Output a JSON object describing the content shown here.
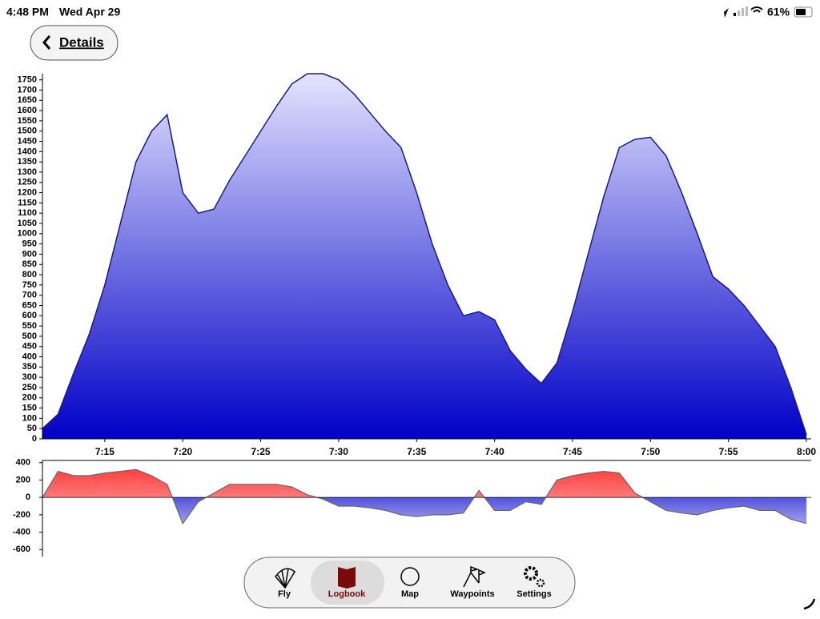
{
  "status_bar": {
    "time": "4:48 PM",
    "date": "Wed Apr 29",
    "battery": "61%"
  },
  "nav": {
    "back": "Details"
  },
  "chart_data": [
    {
      "type": "area",
      "x": [
        "7:11",
        "7:12",
        "7:13",
        "7:14",
        "7:15",
        "7:16",
        "7:17",
        "7:18",
        "7:19",
        "7:20",
        "7:21",
        "7:22",
        "7:23",
        "7:24",
        "7:25",
        "7:26",
        "7:27",
        "7:28",
        "7:29",
        "7:30",
        "7:31",
        "7:32",
        "7:33",
        "7:34",
        "7:35",
        "7:36",
        "7:37",
        "7:38",
        "7:39",
        "7:40",
        "7:41",
        "7:42",
        "7:43",
        "7:44",
        "7:45",
        "7:46",
        "7:47",
        "7:48",
        "7:49",
        "7:50",
        "7:51",
        "7:52",
        "7:53",
        "7:54",
        "7:55",
        "7:56",
        "7:57",
        "7:58",
        "7:59",
        "8:00"
      ],
      "values": [
        50,
        120,
        320,
        510,
        750,
        1050,
        1350,
        1500,
        1580,
        1200,
        1100,
        1120,
        1260,
        1380,
        1500,
        1620,
        1730,
        1780,
        1780,
        1750,
        1680,
        1590,
        1500,
        1420,
        1200,
        950,
        750,
        600,
        620,
        580,
        430,
        340,
        270,
        370,
        620,
        900,
        1180,
        1420,
        1460,
        1470,
        1380,
        1200,
        1000,
        790,
        730,
        650,
        550,
        450,
        250,
        20
      ],
      "color": "#0000c8",
      "xlim": [
        "7:11",
        "8:00"
      ],
      "xticks": [
        "7:15",
        "7:20",
        "7:25",
        "7:30",
        "7:35",
        "7:40",
        "7:45",
        "7:50",
        "7:55",
        "8:00"
      ],
      "ylim": [
        0,
        1780
      ],
      "yticks": [
        0,
        50,
        100,
        150,
        200,
        250,
        300,
        350,
        400,
        450,
        500,
        550,
        600,
        650,
        700,
        750,
        800,
        850,
        900,
        950,
        1000,
        1050,
        1100,
        1150,
        1200,
        1250,
        1300,
        1350,
        1400,
        1450,
        1500,
        1550,
        1600,
        1650,
        1700,
        1750
      ]
    },
    {
      "type": "vario",
      "x": [
        "7:11",
        "7:12",
        "7:13",
        "7:14",
        "7:15",
        "7:16",
        "7:17",
        "7:18",
        "7:19",
        "7:20",
        "7:21",
        "7:22",
        "7:23",
        "7:24",
        "7:25",
        "7:26",
        "7:27",
        "7:28",
        "7:29",
        "7:30",
        "7:31",
        "7:32",
        "7:33",
        "7:34",
        "7:35",
        "7:36",
        "7:37",
        "7:38",
        "7:39",
        "7:40",
        "7:41",
        "7:42",
        "7:43",
        "7:44",
        "7:45",
        "7:46",
        "7:47",
        "7:48",
        "7:49",
        "7:50",
        "7:51",
        "7:52",
        "7:53",
        "7:54",
        "7:55",
        "7:56",
        "7:57",
        "7:58",
        "7:59",
        "8:00"
      ],
      "values": [
        0,
        300,
        250,
        250,
        280,
        300,
        320,
        250,
        150,
        -300,
        -50,
        50,
        150,
        150,
        150,
        150,
        120,
        30,
        -20,
        -100,
        -100,
        -120,
        -150,
        -200,
        -220,
        -200,
        -200,
        -180,
        80,
        -150,
        -150,
        -50,
        -80,
        200,
        250,
        280,
        300,
        280,
        50,
        -50,
        -150,
        -180,
        -200,
        -150,
        -120,
        -100,
        -150,
        -150,
        -250,
        -300
      ],
      "colors": {
        "up": "#ff4040",
        "down": "#0000c8"
      },
      "xlim": [
        "7:11",
        "8:00"
      ],
      "ylim": [
        -680,
        425
      ],
      "yticks": [
        400,
        200,
        0,
        -200,
        -400,
        -600
      ]
    }
  ],
  "tab_bar": {
    "tabs": [
      "Fly",
      "Logbook",
      "Map",
      "Waypoints",
      "Settings"
    ],
    "selected": 1
  }
}
